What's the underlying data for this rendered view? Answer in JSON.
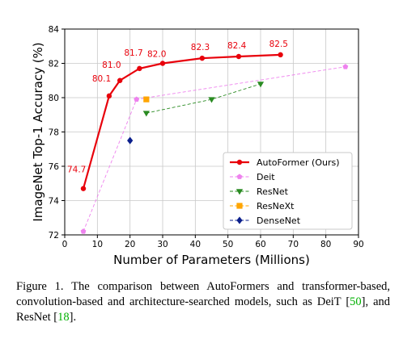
{
  "chart_data": {
    "type": "line",
    "xlabel": "Number of Parameters (Millions)",
    "ylabel": "ImageNet Top-1 Accuracy (%)",
    "xlim": [
      0,
      90
    ],
    "ylim": [
      72,
      84
    ],
    "xticks": [
      0,
      10,
      20,
      30,
      40,
      50,
      60,
      70,
      80,
      90
    ],
    "yticks": [
      72,
      74,
      76,
      78,
      80,
      82,
      84
    ],
    "legend_position": "lower-right",
    "series": [
      {
        "name": "AutoFormer (Ours)",
        "color": "#e8000b",
        "marker": "circle",
        "linestyle": "solid",
        "x": [
          5.7,
          13.6,
          16.9,
          22.9,
          30.0,
          42.1,
          53.3,
          66.1
        ],
        "y": [
          74.7,
          80.1,
          81.0,
          81.7,
          82.0,
          82.3,
          82.4,
          82.5
        ],
        "labels": [
          "74.7",
          "80.1",
          "81.0",
          "81.7",
          "82.0",
          "82.3",
          "82.4",
          "82.5"
        ]
      },
      {
        "name": "Deit",
        "color": "#ee82ee",
        "marker": "pentagon",
        "linestyle": "dashed",
        "x": [
          5.7,
          22.0,
          86.0
        ],
        "y": [
          72.2,
          79.9,
          81.8
        ]
      },
      {
        "name": "ResNet",
        "color": "#2a8b22",
        "marker": "triangle-down",
        "linestyle": "dashed",
        "x": [
          25.0,
          45.0,
          60.0
        ],
        "y": [
          79.1,
          79.9,
          80.8
        ]
      },
      {
        "name": "ResNeXt",
        "color": "#ffa500",
        "marker": "square",
        "linestyle": "dashed",
        "x": [
          25.0
        ],
        "y": [
          79.9
        ]
      },
      {
        "name": "DenseNet",
        "color": "#0b1f8c",
        "marker": "diamond",
        "linestyle": "dashed",
        "x": [
          20.0
        ],
        "y": [
          77.5
        ]
      }
    ]
  },
  "caption": {
    "part1": "Figure 1. The comparison between AutoFormers and transformer-based, convolution-based and architecture-searched models, such as DeiT [",
    "ref1": "50",
    "part2": "], and ResNet [",
    "ref2": "18",
    "part3": "]."
  }
}
